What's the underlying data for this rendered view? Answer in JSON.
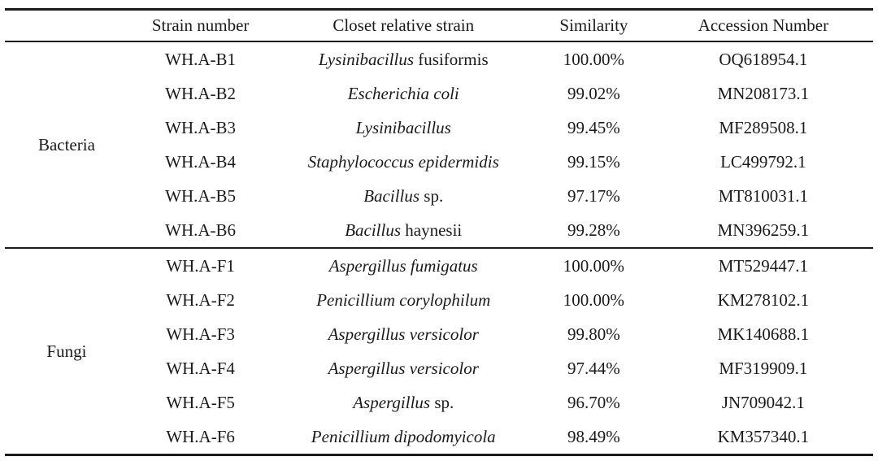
{
  "table": {
    "headers": {
      "group": "",
      "strain": "Strain number",
      "relative": "Closet relative strain",
      "similarity": "Similarity",
      "accession": "Accession Number"
    },
    "sections": [
      {
        "group": "Bacteria",
        "rows": [
          {
            "strain": "WH.A-B1",
            "relative": [
              {
                "text": "Lysinibacillus",
                "italic": true
              },
              {
                "text": " fusiformis",
                "italic": false
              }
            ],
            "similarity": "100.00%",
            "accession": "OQ618954.1"
          },
          {
            "strain": "WH.A-B2",
            "relative": [
              {
                "text": "Escherichia coli",
                "italic": true
              }
            ],
            "similarity": "99.02%",
            "accession": "MN208173.1"
          },
          {
            "strain": "WH.A-B3",
            "relative": [
              {
                "text": "Lysinibacillus",
                "italic": true
              }
            ],
            "similarity": "99.45%",
            "accession": "MF289508.1"
          },
          {
            "strain": "WH.A-B4",
            "relative": [
              {
                "text": "Staphylococcus epidermidis",
                "italic": true
              }
            ],
            "similarity": "99.15%",
            "accession": "LC499792.1"
          },
          {
            "strain": "WH.A-B5",
            "relative": [
              {
                "text": "Bacillus",
                "italic": true
              },
              {
                "text": " sp.",
                "italic": false
              }
            ],
            "similarity": "97.17%",
            "accession": "MT810031.1"
          },
          {
            "strain": "WH.A-B6",
            "relative": [
              {
                "text": "Bacillus",
                "italic": true
              },
              {
                "text": " haynesii",
                "italic": false
              }
            ],
            "similarity": "99.28%",
            "accession": "MN396259.1"
          }
        ]
      },
      {
        "group": "Fungi",
        "rows": [
          {
            "strain": "WH.A-F1",
            "relative": [
              {
                "text": "Aspergillus fumigatus",
                "italic": true
              }
            ],
            "similarity": "100.00%",
            "accession": "MT529447.1"
          },
          {
            "strain": "WH.A-F2",
            "relative": [
              {
                "text": "Penicillium corylophilum",
                "italic": true
              }
            ],
            "similarity": "100.00%",
            "accession": "KM278102.1"
          },
          {
            "strain": "WH.A-F3",
            "relative": [
              {
                "text": "Aspergillus versicolor",
                "italic": true
              }
            ],
            "similarity": "99.80%",
            "accession": "MK140688.1"
          },
          {
            "strain": "WH.A-F4",
            "relative": [
              {
                "text": "Aspergillus versicolor",
                "italic": true
              }
            ],
            "similarity": "97.44%",
            "accession": "MF319909.1"
          },
          {
            "strain": "WH.A-F5",
            "relative": [
              {
                "text": "Aspergillus",
                "italic": true
              },
              {
                "text": " sp.",
                "italic": false
              }
            ],
            "similarity": "96.70%",
            "accession": "JN709042.1"
          },
          {
            "strain": "WH.A-F6",
            "relative": [
              {
                "text": "Penicillium dipodomyicola",
                "italic": true
              }
            ],
            "similarity": "98.49%",
            "accession": "KM357340.1"
          }
        ]
      }
    ]
  }
}
